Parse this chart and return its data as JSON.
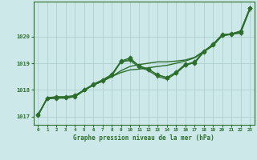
{
  "title": "Graphe pression niveau de la mer (hPa)",
  "background_color": "#cce8e8",
  "plot_bg_color": "#cce8e8",
  "grid_color": "#aacccc",
  "line_color": "#2d6e2d",
  "xlim": [
    -0.5,
    23.5
  ],
  "ylim": [
    1016.7,
    1021.3
  ],
  "yticks": [
    1017,
    1018,
    1019,
    1020
  ],
  "xticks": [
    0,
    1,
    2,
    3,
    4,
    5,
    6,
    7,
    8,
    9,
    10,
    11,
    12,
    13,
    14,
    15,
    16,
    17,
    18,
    19,
    20,
    21,
    22,
    23
  ],
  "series": [
    {
      "y": [
        1017.05,
        1017.7,
        1017.75,
        1017.75,
        1017.8,
        1018.0,
        1018.2,
        1018.35,
        1018.55,
        1019.05,
        1019.15,
        1018.9,
        1018.78,
        1018.55,
        1018.45,
        1018.65,
        1018.95,
        1019.05,
        1019.45,
        1019.7,
        1020.05,
        1020.1,
        1020.15,
        1021.05
      ],
      "marker": "D",
      "markersize": 2.5,
      "linewidth": 0.9
    },
    {
      "y": [
        1017.05,
        1017.72,
        1017.74,
        1017.73,
        1017.77,
        1018.0,
        1018.2,
        1018.32,
        1018.52,
        1019.05,
        1019.1,
        1018.85,
        1018.72,
        1018.5,
        1018.4,
        1018.62,
        1018.92,
        1019.02,
        1019.42,
        1019.7,
        1020.03,
        1020.08,
        1020.12,
        1021.0
      ],
      "marker": "+",
      "markersize": 3.5,
      "linewidth": 0.9
    },
    {
      "y": [
        1017.1,
        1017.68,
        1017.7,
        1017.72,
        1017.76,
        1018.0,
        1018.22,
        1018.38,
        1018.58,
        1019.08,
        1019.2,
        1018.88,
        1018.77,
        1018.57,
        1018.47,
        1018.67,
        1018.97,
        1019.0,
        1019.42,
        1019.72,
        1020.07,
        1020.08,
        1020.2,
        1021.05
      ],
      "marker": "D",
      "markersize": 2.5,
      "linewidth": 0.9
    },
    {
      "y": [
        1017.05,
        1017.68,
        1017.7,
        1017.7,
        1017.75,
        1017.98,
        1018.18,
        1018.33,
        1018.5,
        1018.65,
        1018.75,
        1018.78,
        1018.83,
        1018.88,
        1018.92,
        1019.0,
        1019.08,
        1019.2,
        1019.42,
        1019.65,
        1020.02,
        1020.08,
        1020.18,
        1021.02
      ],
      "marker": null,
      "markersize": 0,
      "linewidth": 1.0
    },
    {
      "y": [
        1017.05,
        1017.68,
        1017.7,
        1017.7,
        1017.75,
        1017.98,
        1018.18,
        1018.33,
        1018.5,
        1018.72,
        1018.88,
        1018.95,
        1019.0,
        1019.05,
        1019.05,
        1019.08,
        1019.12,
        1019.22,
        1019.45,
        1019.68,
        1020.05,
        1020.1,
        1020.2,
        1021.05
      ],
      "marker": null,
      "markersize": 0,
      "linewidth": 1.0
    }
  ]
}
